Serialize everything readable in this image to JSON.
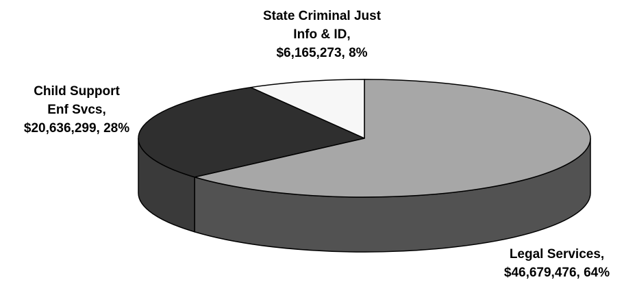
{
  "chart_data": {
    "type": "pie",
    "style": "3d",
    "title": "",
    "slices": [
      {
        "category": "Legal Services",
        "value": 46679476,
        "percent": 64,
        "color": "#a7a7a7",
        "side_color": "#525252",
        "label_lines": [
          "Legal Services,",
          "$46,679,476, 64%"
        ]
      },
      {
        "category": "Child Support Enf Svcs",
        "value": 20636299,
        "percent": 28,
        "color": "#2f2f2f",
        "side_color": "#3a3a3a",
        "label_lines": [
          "Child Support",
          "Enf Svcs,",
          "$20,636,299, 28%"
        ]
      },
      {
        "category": "State Criminal Just Info & ID",
        "value": 6165273,
        "percent": 8,
        "color": "#f7f7f7",
        "side_color": "#c8c8c8",
        "label_lines": [
          "State Criminal Just",
          "Info & ID,",
          "$6,165,273, 8%"
        ]
      }
    ]
  }
}
